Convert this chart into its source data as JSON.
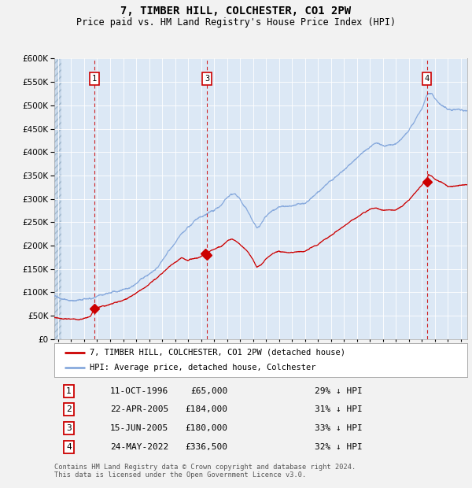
{
  "title": "7, TIMBER HILL, COLCHESTER, CO1 2PW",
  "subtitle": "Price paid vs. HM Land Registry's House Price Index (HPI)",
  "title_fontsize": 10,
  "subtitle_fontsize": 8.5,
  "background_color": "#dce8f5",
  "fig_color": "#f2f2f2",
  "grid_color": "#ffffff",
  "ylim": [
    0,
    600000
  ],
  "yticks": [
    0,
    50000,
    100000,
    150000,
    200000,
    250000,
    300000,
    350000,
    400000,
    450000,
    500000,
    550000,
    600000
  ],
  "xlim_start": 1993.7,
  "xlim_end": 2025.5,
  "sale_dates": [
    1996.78,
    2005.3,
    2005.46,
    2022.39
  ],
  "sale_prices": [
    65000,
    184000,
    180000,
    336500
  ],
  "sale_labels": [
    "1",
    "2",
    "3",
    "4"
  ],
  "vline_labels": [
    "1",
    "3",
    "4"
  ],
  "vline_dates": [
    1996.78,
    2005.46,
    2022.39
  ],
  "sale_color": "#cc0000",
  "hpi_color": "#88aadd",
  "legend_sale_label": "7, TIMBER HILL, COLCHESTER, CO1 2PW (detached house)",
  "legend_hpi_label": "HPI: Average price, detached house, Colchester",
  "table_rows": [
    [
      "1",
      "11-OCT-1996",
      "£65,000",
      "29% ↓ HPI"
    ],
    [
      "2",
      "22-APR-2005",
      "£184,000",
      "31% ↓ HPI"
    ],
    [
      "3",
      "15-JUN-2005",
      "£180,000",
      "33% ↓ HPI"
    ],
    [
      "4",
      "24-MAY-2022",
      "£336,500",
      "32% ↓ HPI"
    ]
  ],
  "footnote": "Contains HM Land Registry data © Crown copyright and database right 2024.\nThis data is licensed under the Open Government Licence v3.0."
}
